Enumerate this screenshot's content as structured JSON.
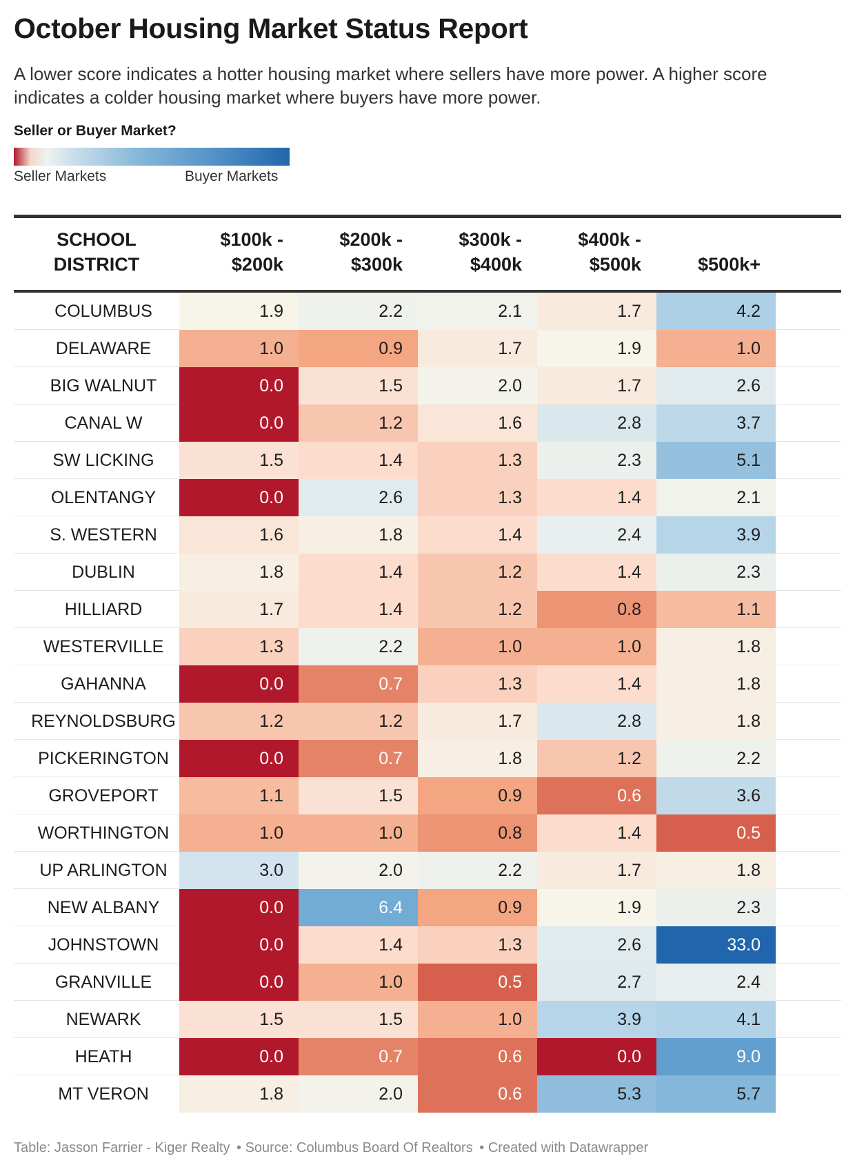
{
  "title": "October Housing Market Status Report",
  "description": "A lower score indicates a hotter housing market where sellers have more power. A higher score indicates a colder housing market where buyers have more power.",
  "legend": {
    "title": "Seller or Buyer Market?",
    "left_label": "Seller Markets",
    "right_label": "Buyer Markets",
    "colors": [
      "#b2182b",
      "#f4d5cc",
      "#eef3f1",
      "#86b7d9",
      "#2166ac"
    ]
  },
  "chart_data": {
    "type": "table",
    "columns": [
      "SCHOOL\nDISTRICT",
      "$100k -\n$200k",
      "$200k -\n$300k",
      "$300k -\n$400k",
      "$400k -\n$500k",
      "$500k+"
    ],
    "rows": [
      {
        "district": "COLUMBUS",
        "values": [
          "1.9",
          "2.2",
          "2.1",
          "1.7",
          "4.2"
        ]
      },
      {
        "district": "DELAWARE",
        "values": [
          "1.0",
          "0.9",
          "1.7",
          "1.9",
          "1.0"
        ]
      },
      {
        "district": "BIG WALNUT",
        "values": [
          "0.0",
          "1.5",
          "2.0",
          "1.7",
          "2.6"
        ]
      },
      {
        "district": "CANAL W",
        "values": [
          "0.0",
          "1.2",
          "1.6",
          "2.8",
          "3.7"
        ]
      },
      {
        "district": "SW LICKING",
        "values": [
          "1.5",
          "1.4",
          "1.3",
          "2.3",
          "5.1"
        ]
      },
      {
        "district": "OLENTANGY",
        "values": [
          "0.0",
          "2.6",
          "1.3",
          "1.4",
          "2.1"
        ]
      },
      {
        "district": "S. WESTERN",
        "values": [
          "1.6",
          "1.8",
          "1.4",
          "2.4",
          "3.9"
        ]
      },
      {
        "district": "DUBLIN",
        "values": [
          "1.8",
          "1.4",
          "1.2",
          "1.4",
          "2.3"
        ]
      },
      {
        "district": "HILLIARD",
        "values": [
          "1.7",
          "1.4",
          "1.2",
          "0.8",
          "1.1"
        ]
      },
      {
        "district": "WESTERVILLE",
        "values": [
          "1.3",
          "2.2",
          "1.0",
          "1.0",
          "1.8"
        ]
      },
      {
        "district": "GAHANNA",
        "values": [
          "0.0",
          "0.7",
          "1.3",
          "1.4",
          "1.8"
        ]
      },
      {
        "district": "REYNOLDSBURG",
        "values": [
          "1.2",
          "1.2",
          "1.7",
          "2.8",
          "1.8"
        ]
      },
      {
        "district": "PICKERINGTON",
        "values": [
          "0.0",
          "0.7",
          "1.8",
          "1.2",
          "2.2"
        ]
      },
      {
        "district": "GROVEPORT",
        "values": [
          "1.1",
          "1.5",
          "0.9",
          "0.6",
          "3.6"
        ]
      },
      {
        "district": "WORTHINGTON",
        "values": [
          "1.0",
          "1.0",
          "0.8",
          "1.4",
          "0.5"
        ]
      },
      {
        "district": "UP ARLINGTON",
        "values": [
          "3.0",
          "2.0",
          "2.2",
          "1.7",
          "1.8"
        ]
      },
      {
        "district": "NEW ALBANY",
        "values": [
          "0.0",
          "6.4",
          "0.9",
          "1.9",
          "2.3"
        ]
      },
      {
        "district": "JOHNSTOWN",
        "values": [
          "0.0",
          "1.4",
          "1.3",
          "2.6",
          "33.0"
        ]
      },
      {
        "district": "GRANVILLE",
        "values": [
          "0.0",
          "1.0",
          "0.5",
          "2.7",
          "2.4"
        ]
      },
      {
        "district": "NEWARK",
        "values": [
          "1.5",
          "1.5",
          "1.0",
          "3.9",
          "4.1"
        ]
      },
      {
        "district": "HEATH",
        "values": [
          "0.0",
          "0.7",
          "0.6",
          "0.0",
          "9.0"
        ]
      },
      {
        "district": "MT VERON",
        "values": [
          "1.8",
          "2.0",
          "0.6",
          "5.3",
          "5.7"
        ]
      }
    ]
  },
  "footer": {
    "table_credit": "Table: Jasson Farrier - Kiger Realty",
    "source": "• Source: Columbus Board Of Realtors",
    "created_with": "• Created with Datawrapper"
  }
}
